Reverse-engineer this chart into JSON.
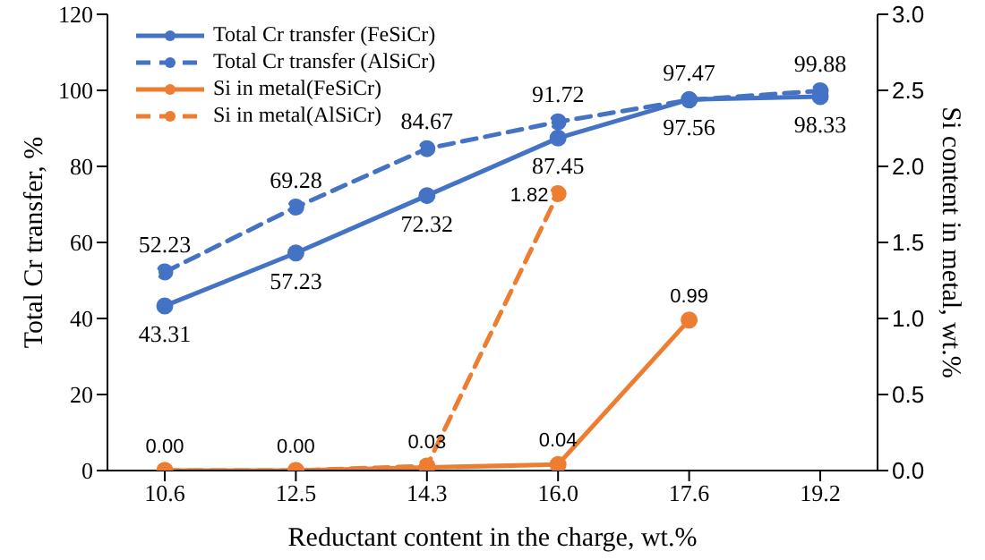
{
  "chart_data": {
    "type": "line",
    "xlabel": "Reductant content in the charge, wt.%",
    "ylabel": "Total Cr transfer, %",
    "y2label": "Si content in metal, wt.%",
    "categories": [
      "10.6",
      "12.5",
      "14.3",
      "16.0",
      "17.6",
      "19.2"
    ],
    "ylim": [
      0,
      120
    ],
    "yticks": [
      0,
      20,
      40,
      60,
      80,
      100,
      120
    ],
    "y2lim": [
      0,
      3
    ],
    "y2ticks": [
      {
        "value": 0,
        "label": "0.0"
      },
      {
        "value": 0.5,
        "label": "0.5"
      },
      {
        "value": 1,
        "label": "1.0"
      },
      {
        "value": 1.5,
        "label": "1.5"
      },
      {
        "value": 2,
        "label": "2.0"
      },
      {
        "value": 2.5,
        "label": "2.5"
      },
      {
        "value": 3,
        "label": "3.0"
      }
    ],
    "grid": false,
    "legend": "top left",
    "marker": "circle",
    "series": [
      {
        "name": "Total Cr transfer (FeSiCr)",
        "color": "#4472c4",
        "line_style": "solid",
        "values": [
          43.31,
          57.23,
          72.32,
          87.45,
          97.56,
          98.33
        ],
        "value_labels": [
          "43.31",
          "57.23",
          "72.32",
          "87.45",
          "97.56",
          "98.33"
        ]
      },
      {
        "name": "Total Cr transfer (AlSiCr)",
        "color": "#4472c4",
        "line_style": "dashed",
        "values": [
          52.23,
          69.28,
          84.67,
          91.72,
          97.47,
          99.88
        ],
        "value_labels": [
          "52.23",
          "69.28",
          "84.67",
          "91.72",
          "97.47",
          "99.88"
        ]
      },
      {
        "name": "Si in metal(FeSiCr)",
        "color": "#ed7d31",
        "line_style": "solid",
        "axis": "y2",
        "values": [
          0.0,
          0.0,
          0.02,
          0.04,
          0.99,
          null
        ],
        "value_labels": [
          "0.00",
          "0.00",
          null,
          "0.04",
          "0.99",
          null
        ]
      },
      {
        "name": "Si in metal(AlSiCr)",
        "color": "#ed7d31",
        "line_style": "dashed",
        "axis": "y2",
        "values": [
          0.0,
          0.0,
          0.03,
          1.82,
          null,
          null
        ],
        "value_labels": [
          null,
          null,
          "0.03",
          "1.82",
          null,
          null
        ]
      }
    ]
  }
}
